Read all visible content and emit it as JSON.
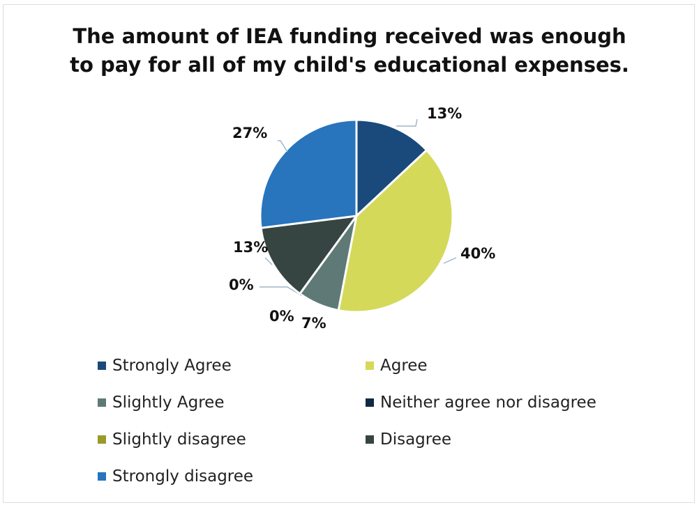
{
  "chart_data": {
    "type": "pie",
    "title_lines": [
      "The amount of IEA funding received was enough",
      "to pay for all of my child's educational expenses."
    ],
    "slices": [
      {
        "label": "Strongly Agree",
        "value": 13,
        "display": "13%",
        "color": "#1a4a7c"
      },
      {
        "label": "Agree",
        "value": 40,
        "display": "40%",
        "color": "#d4d95a"
      },
      {
        "label": "Slightly Agree",
        "value": 7,
        "display": "7%",
        "color": "#5f7a76"
      },
      {
        "label": "Neither agree nor disagree",
        "value": 0,
        "display": "0%",
        "color": "#0f2a45"
      },
      {
        "label": "Slightly disagree",
        "value": 0,
        "display": "0%",
        "color": "#9a9a2a"
      },
      {
        "label": "Disagree",
        "value": 13,
        "display": "13%",
        "color": "#364541"
      },
      {
        "label": "Strongly disagree",
        "value": 27,
        "display": "27%",
        "color": "#2874bd"
      }
    ],
    "legend_position": "bottom"
  }
}
